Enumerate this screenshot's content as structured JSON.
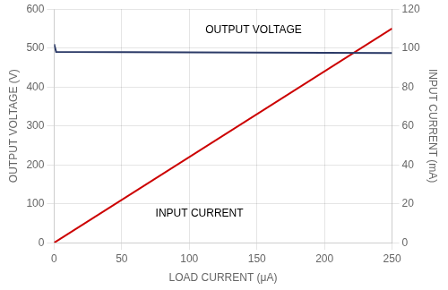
{
  "chart_data": {
    "type": "line",
    "xlabel": "LOAD CURRENT (μA)",
    "ylabel": "OUTPUT VOLTAGE (V)",
    "y2label": "INPUT CURRENT (mA)",
    "xlim": [
      0,
      250
    ],
    "ylim": [
      0,
      600
    ],
    "y2lim": [
      0,
      120
    ],
    "xticks": [
      0,
      50,
      100,
      150,
      200,
      250
    ],
    "yticks": [
      0,
      100,
      200,
      300,
      400,
      500,
      600
    ],
    "y2ticks": [
      0,
      20,
      40,
      60,
      80,
      100,
      120
    ],
    "grid": true,
    "series": [
      {
        "color": "#2b3a67",
        "axis": "y",
        "x": [
          0,
          1.5,
          250
        ],
        "values": [
          510,
          490,
          487
        ]
      },
      {
        "color": "#cc0000",
        "axis": "y2",
        "x": [
          0,
          250
        ],
        "values": [
          0,
          110
        ]
      }
    ],
    "annotations": [
      "OUTPUT VOLTAGE",
      "INPUT CURRENT"
    ]
  }
}
